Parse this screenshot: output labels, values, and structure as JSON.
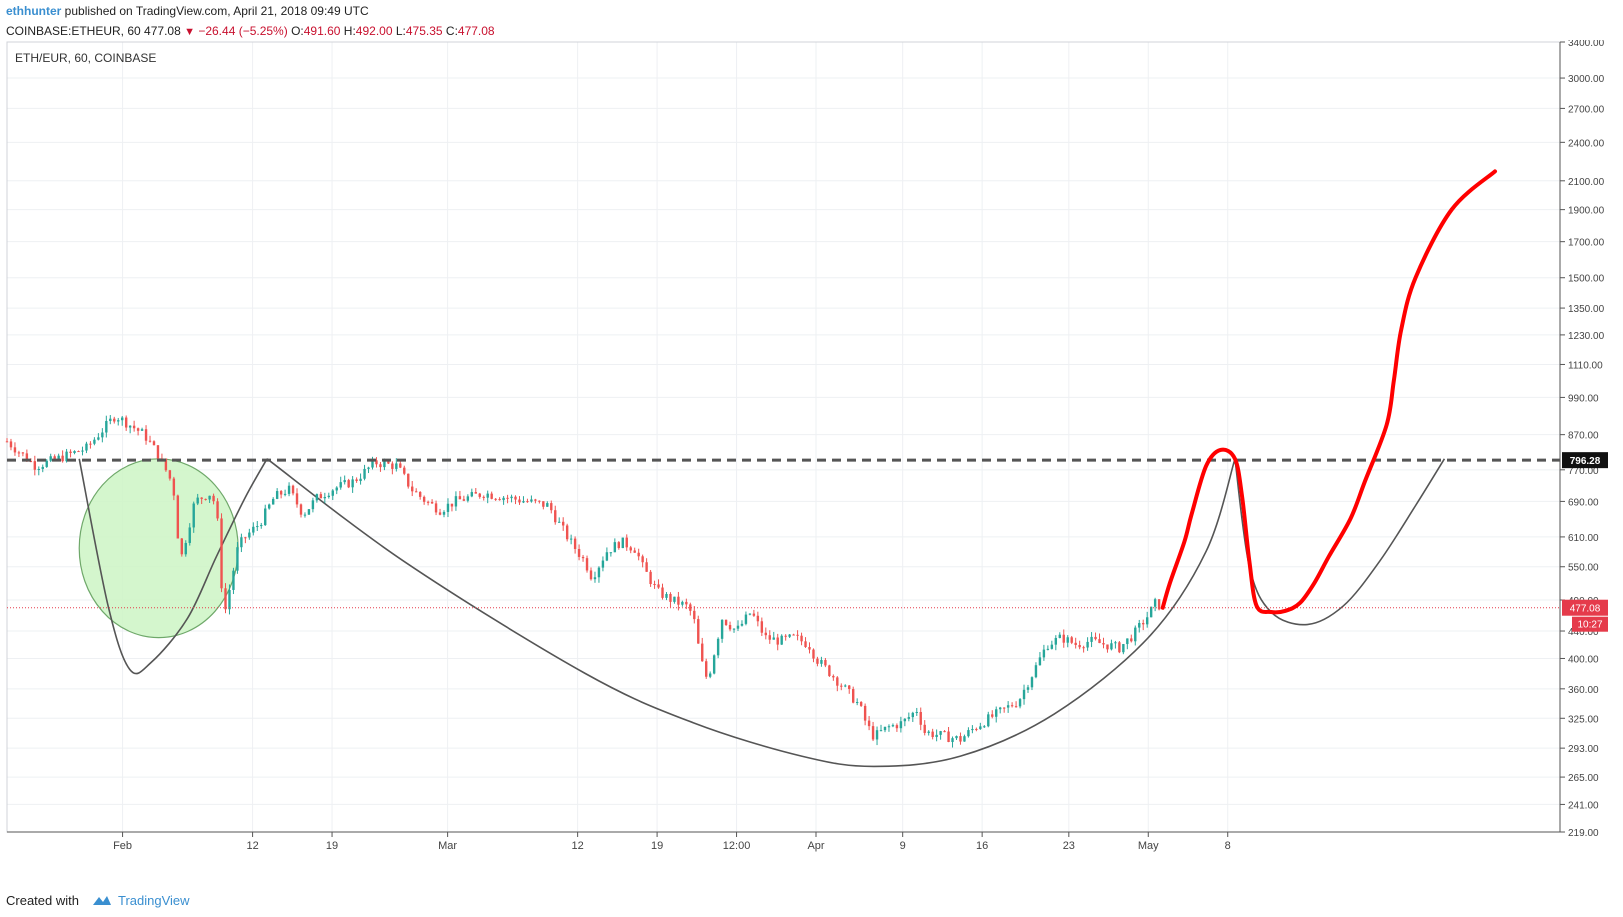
{
  "header": {
    "author": "ethhunter",
    "published_text": " published on TradingView.com, April 21, 2018 09:49 UTC",
    "symbol_line": "COINBASE:ETHEUR, 60",
    "last": "477.08",
    "change": "−26.44 (−5.25%)",
    "o_label": "O:",
    "o_value": "491.60",
    "h_label": "H:",
    "h_value": "492.00",
    "l_label": "L:",
    "l_value": "475.35",
    "c_label": "C:",
    "c_value": "477.08"
  },
  "footer": {
    "created_with": "Created with",
    "brand": "TradingView"
  },
  "chart_data": {
    "type": "candlestick",
    "title": "ETH/EUR, 60, COINBASE",
    "y_scale": "log",
    "ylim": [
      219,
      3400
    ],
    "y_ticks": [
      "3400.00",
      "3000.00",
      "2700.00",
      "2400.00",
      "2100.00",
      "1900.00",
      "1700.00",
      "1500.00",
      "1350.00",
      "1230.00",
      "1110.00",
      "990.00",
      "870.00",
      "770.00",
      "690.00",
      "610.00",
      "550.00",
      "490.00",
      "440.00",
      "400.00",
      "360.00",
      "325.00",
      "293.00",
      "265.00",
      "241.00",
      "219.00"
    ],
    "x_tick_labels": [
      "Feb",
      "12",
      "19",
      "Mar",
      "12",
      "19",
      "12:00",
      "Apr",
      "9",
      "16",
      "23",
      "May",
      "8"
    ],
    "resistance_level": "796.28",
    "last_price": "477.08",
    "countdown": "10:27",
    "grid": true,
    "colors": {
      "up": "#26a69a",
      "down": "#ef5350",
      "projection": "#ff0000",
      "curve": "#555555",
      "circle_fill": "#ccf5c4",
      "circle_stroke": "#6fa86a",
      "last_price": "#e53b4b"
    },
    "price_path": [
      [
        0,
        850
      ],
      [
        4,
        780
      ],
      [
        7,
        800
      ],
      [
        11,
        830
      ],
      [
        15,
        930
      ],
      [
        17,
        900
      ],
      [
        19,
        870
      ],
      [
        21,
        810
      ],
      [
        23,
        730
      ],
      [
        24,
        560
      ],
      [
        26,
        690
      ],
      [
        28,
        710
      ],
      [
        29,
        680
      ],
      [
        30,
        460
      ],
      [
        32,
        590
      ],
      [
        33,
        610
      ],
      [
        35,
        640
      ],
      [
        37,
        700
      ],
      [
        39,
        720
      ],
      [
        41,
        660
      ],
      [
        43,
        700
      ],
      [
        45,
        720
      ],
      [
        48,
        740
      ],
      [
        51,
        790
      ],
      [
        54,
        780
      ],
      [
        56,
        720
      ],
      [
        58,
        690
      ],
      [
        60,
        670
      ],
      [
        62,
        690
      ],
      [
        64,
        700
      ],
      [
        66,
        710
      ],
      [
        69,
        700
      ],
      [
        72,
        690
      ],
      [
        75,
        680
      ],
      [
        76,
        650
      ],
      [
        78,
        600
      ],
      [
        80,
        560
      ],
      [
        81,
        530
      ],
      [
        83,
        580
      ],
      [
        85,
        600
      ],
      [
        87,
        585
      ],
      [
        88,
        550
      ],
      [
        90,
        505
      ],
      [
        92,
        490
      ],
      [
        94,
        480
      ],
      [
        95,
        465
      ],
      [
        96,
        400
      ],
      [
        97,
        370
      ],
      [
        99,
        460
      ],
      [
        101,
        440
      ],
      [
        103,
        470
      ],
      [
        105,
        430
      ],
      [
        107,
        425
      ],
      [
        109,
        430
      ],
      [
        111,
        420
      ],
      [
        112,
        400
      ],
      [
        114,
        380
      ],
      [
        116,
        360
      ],
      [
        118,
        340
      ],
      [
        119,
        318
      ],
      [
        120,
        305
      ],
      [
        122,
        315
      ],
      [
        124,
        320
      ],
      [
        126,
        335
      ],
      [
        127,
        310
      ],
      [
        130,
        305
      ],
      [
        132,
        302
      ],
      [
        134,
        315
      ],
      [
        136,
        325
      ],
      [
        138,
        335
      ],
      [
        140,
        345
      ],
      [
        142,
        380
      ],
      [
        144,
        420
      ],
      [
        146,
        430
      ],
      [
        148,
        420
      ],
      [
        150,
        425
      ],
      [
        152,
        420
      ],
      [
        154,
        415
      ],
      [
        156,
        435
      ],
      [
        158,
        465
      ],
      [
        159,
        485
      ],
      [
        160,
        477
      ]
    ],
    "projection_path": [
      [
        160,
        477
      ],
      [
        161,
        520
      ],
      [
        163,
        600
      ],
      [
        164,
        660
      ],
      [
        166,
        780
      ],
      [
        168,
        825
      ],
      [
        170,
        800
      ],
      [
        171,
        700
      ],
      [
        172,
        560
      ],
      [
        173,
        480
      ],
      [
        175,
        470
      ],
      [
        177,
        472
      ],
      [
        179,
        485
      ],
      [
        181,
        520
      ],
      [
        183,
        570
      ],
      [
        186,
        650
      ],
      [
        188,
        740
      ],
      [
        191,
        900
      ],
      [
        192,
        1050
      ],
      [
        193,
        1250
      ],
      [
        195,
        1500
      ],
      [
        200,
        1900
      ],
      [
        206,
        2170
      ]
    ],
    "curves": [
      {
        "name": "small-cup",
        "points": [
          [
            10,
            800
          ],
          [
            14,
            480
          ],
          [
            17,
            385
          ],
          [
            20,
            395
          ],
          [
            25,
            460
          ],
          [
            29,
            570
          ],
          [
            33,
            700
          ],
          [
            36,
            800
          ]
        ]
      },
      {
        "name": "large-cup",
        "points": [
          [
            36,
            800
          ],
          [
            55,
            560
          ],
          [
            80,
            380
          ],
          [
            95,
            320
          ],
          [
            110,
            285
          ],
          [
            120,
            275
          ],
          [
            132,
            285
          ],
          [
            145,
            330
          ],
          [
            158,
            430
          ],
          [
            166,
            580
          ],
          [
            170,
            800
          ]
        ]
      },
      {
        "name": "handle",
        "points": [
          [
            170,
            800
          ],
          [
            172,
            550
          ],
          [
            175,
            470
          ],
          [
            180,
            450
          ],
          [
            185,
            480
          ],
          [
            190,
            560
          ],
          [
            195,
            680
          ],
          [
            199,
            800
          ]
        ]
      }
    ],
    "circle": {
      "center_x": 21,
      "center_y": 575,
      "radius_x": 11,
      "radius_top_y": 800,
      "radius_bottom_y": 430
    }
  }
}
